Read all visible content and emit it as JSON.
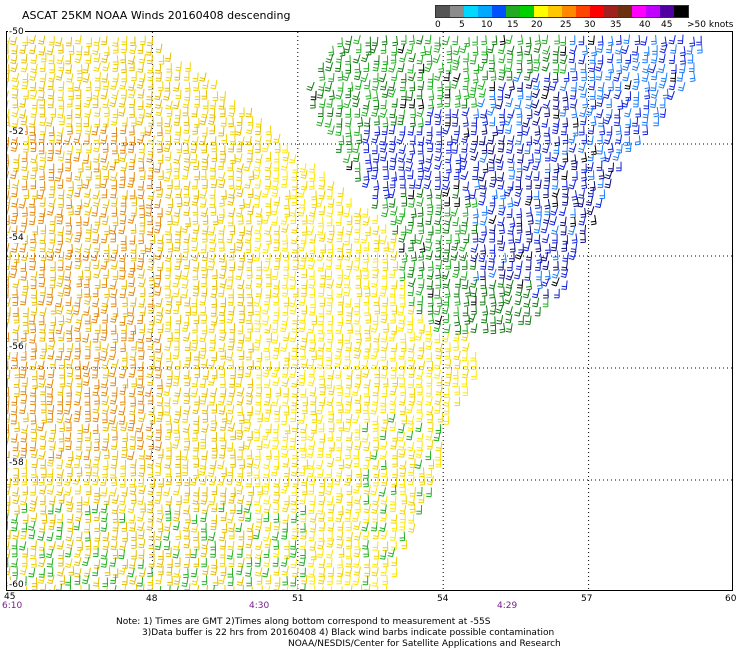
{
  "title": "ASCAT 25KM NOAA Winds 20160408 descending",
  "legend": {
    "colors": [
      "#555555",
      "#8c8c8c",
      "#00d8ff",
      "#00a8ff",
      "#0050ff",
      "#22aa22",
      "#00d000",
      "#ffff00",
      "#ffc800",
      "#ff8800",
      "#ff4400",
      "#ff0000",
      "#a02020",
      "#6a3010",
      "#ff00ff",
      "#c000ff",
      "#5000a0",
      "#000000"
    ],
    "labels": [
      "0",
      "5",
      "10",
      "15",
      "20",
      "25",
      "30",
      "35",
      "40",
      "45",
      ">50 knots"
    ]
  },
  "map": {
    "lat_labels": [
      "-50",
      "-52",
      "-54",
      "-56",
      "-58",
      "-60"
    ],
    "lon_labels": [
      "45",
      "48",
      "51",
      "54",
      "57",
      "60"
    ],
    "time_labels": [
      "6:10",
      "4:30",
      "4:29"
    ],
    "lat_range": [
      -60,
      -50
    ],
    "lon_range": [
      45,
      60
    ]
  },
  "wind_palette": {
    "orange": "#e48a10",
    "dark_yellow": "#e6be00",
    "yellow": "#f2d400",
    "light_yellow": "#ffe800",
    "green": "#22b022",
    "dark_green": "#137a13",
    "blue": "#1020dd",
    "light_blue": "#1a7cff",
    "navy": "#0a0a80",
    "black": "#000000"
  },
  "notes": {
    "line1": "Note: 1) Times are GMT 2)Times along bottom correspond to measurement at -55S",
    "line2": "3)Data buffer is 22 hrs from 20160408 4) Black wind barbs indicate possible contamination"
  },
  "credit": "NOAA/NESDIS/Center for Satellite Applications and Research"
}
